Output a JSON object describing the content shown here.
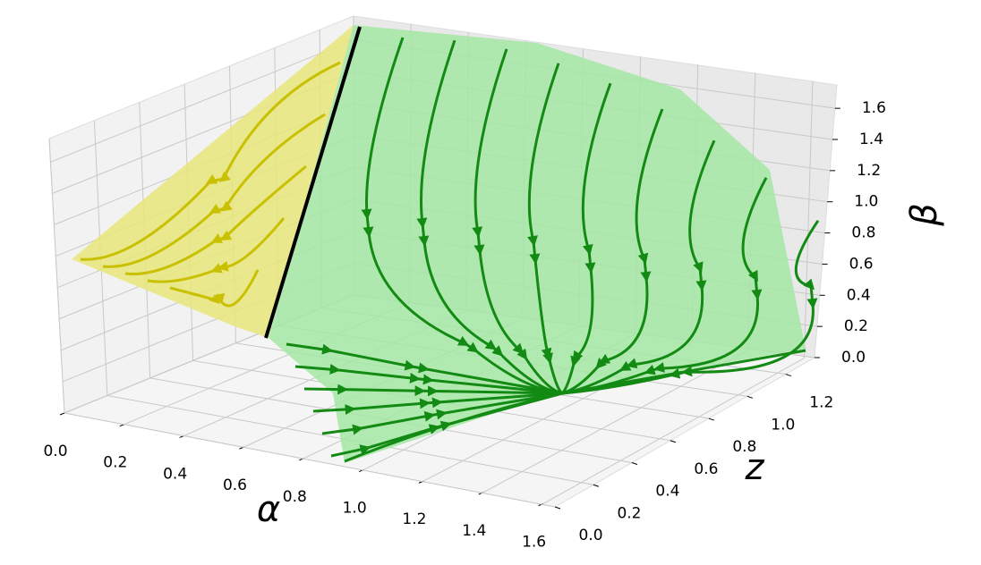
{
  "chart_data": {
    "type": "surface3d",
    "xlabel": "α",
    "ylabel": "z",
    "zlabel": "β",
    "xlim": [
      0,
      1.7
    ],
    "ylim": [
      0,
      1.35
    ],
    "zlim": [
      0,
      1.75
    ],
    "xticks": [
      {
        "value": 0,
        "label": "0.0"
      },
      {
        "value": 0.2,
        "label": "0.2"
      },
      {
        "value": 0.4,
        "label": "0.4"
      },
      {
        "value": 0.6,
        "label": "0.6"
      },
      {
        "value": 0.8,
        "label": "0.8"
      },
      {
        "value": 1,
        "label": "1.0"
      },
      {
        "value": 1.2,
        "label": "1.2"
      },
      {
        "value": 1.4,
        "label": "1.4"
      },
      {
        "value": 1.6,
        "label": "1.6"
      }
    ],
    "yticks": [
      {
        "value": 0,
        "label": "0.0"
      },
      {
        "value": 0.2,
        "label": "0.2"
      },
      {
        "value": 0.4,
        "label": "0.4"
      },
      {
        "value": 0.6,
        "label": "0.6"
      },
      {
        "value": 0.8,
        "label": "0.8"
      },
      {
        "value": 1,
        "label": "1.0"
      },
      {
        "value": 1.2,
        "label": "1.2"
      }
    ],
    "zticks": [
      {
        "value": 0,
        "label": "0.0"
      },
      {
        "value": 0.2,
        "label": "0.2"
      },
      {
        "value": 0.4,
        "label": "0.4"
      },
      {
        "value": 0.6,
        "label": "0.6"
      },
      {
        "value": 0.8,
        "label": "0.8"
      },
      {
        "value": 1,
        "label": "1.0"
      },
      {
        "value": 1.2,
        "label": "1.2"
      },
      {
        "value": 1.4,
        "label": "1.4"
      },
      {
        "value": 1.6,
        "label": "1.6"
      }
    ],
    "grid": true
  }
}
